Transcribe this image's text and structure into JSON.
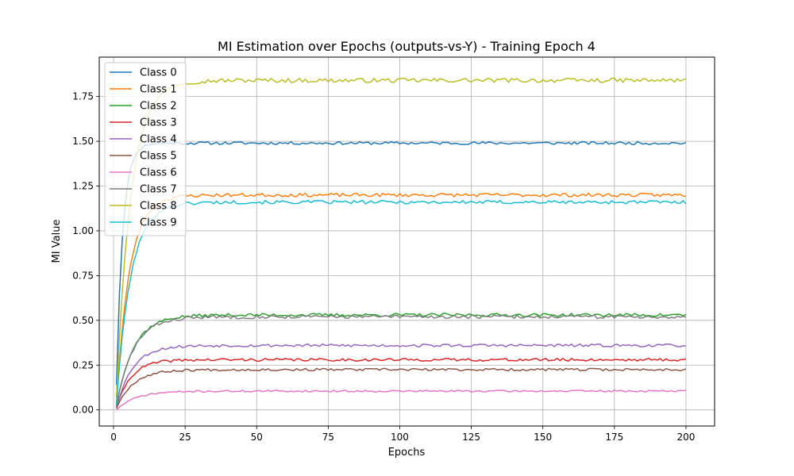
{
  "chart_data": {
    "type": "line",
    "title": "MI Estimation over Epochs (outputs-vs-Y) - Training Epoch 4",
    "xlabel": "Epochs",
    "ylabel": "MI Value",
    "xlim": [
      -5,
      210
    ],
    "ylim": [
      -0.09,
      1.97
    ],
    "xticks": [
      0,
      25,
      50,
      75,
      100,
      125,
      150,
      175,
      200
    ],
    "yticks": [
      0.0,
      0.25,
      0.5,
      0.75,
      1.0,
      1.25,
      1.5,
      1.75
    ],
    "ytick_labels": [
      "0.00",
      "0.25",
      "0.50",
      "0.75",
      "1.00",
      "1.25",
      "1.50",
      "1.75"
    ],
    "grid": true,
    "legend_position": "top-left",
    "x_range": [
      1,
      200
    ],
    "series": [
      {
        "name": "Class 0",
        "color": "#1f77b4",
        "start": 0.14,
        "plateau": 1.49,
        "rate": 0.45,
        "noise": 0.008,
        "seed": 11
      },
      {
        "name": "Class 1",
        "color": "#ff7f0e",
        "start": 0.03,
        "plateau": 1.2,
        "rate": 0.22,
        "noise": 0.01,
        "seed": 23
      },
      {
        "name": "Class 2",
        "color": "#2ca02c",
        "start": 0.02,
        "plateau": 0.53,
        "rate": 0.17,
        "noise": 0.009,
        "seed": 37
      },
      {
        "name": "Class 3",
        "color": "#d62728",
        "start": 0.01,
        "plateau": 0.28,
        "rate": 0.2,
        "noise": 0.008,
        "seed": 41
      },
      {
        "name": "Class 4",
        "color": "#9467bd",
        "start": 0.01,
        "plateau": 0.36,
        "rate": 0.18,
        "noise": 0.008,
        "seed": 53
      },
      {
        "name": "Class 5",
        "color": "#8c564b",
        "start": 0.01,
        "plateau": 0.225,
        "rate": 0.17,
        "noise": 0.007,
        "seed": 67
      },
      {
        "name": "Class 6",
        "color": "#e377c2",
        "start": 0.0,
        "plateau": 0.105,
        "rate": 0.15,
        "noise": 0.005,
        "seed": 71
      },
      {
        "name": "Class 7",
        "color": "#7f7f7f",
        "start": 0.02,
        "plateau": 0.52,
        "rate": 0.17,
        "noise": 0.01,
        "seed": 83
      },
      {
        "name": "Class 8",
        "color": "#bcbd22",
        "start": 0.07,
        "plateau": 1.84,
        "rate": 0.2,
        "noise": 0.012,
        "seed": 97
      },
      {
        "name": "Class 9",
        "color": "#17becf",
        "start": 0.03,
        "plateau": 1.16,
        "rate": 0.2,
        "noise": 0.01,
        "seed": 101
      }
    ]
  }
}
